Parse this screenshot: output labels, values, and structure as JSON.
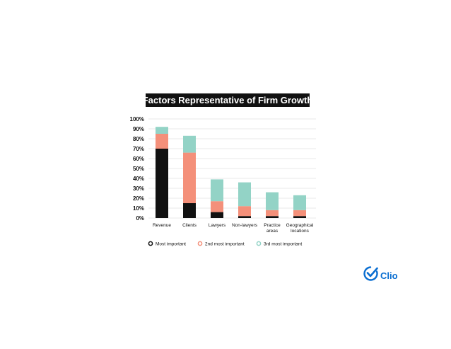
{
  "chart_data": {
    "type": "bar",
    "stacked": true,
    "title": "Factors Representative of Firm Growth",
    "categories": [
      [
        "Revenue"
      ],
      [
        "Clients"
      ],
      [
        "Lawyers"
      ],
      [
        "Non-lawyers"
      ],
      [
        "Practice",
        "areas"
      ],
      [
        "Geographical",
        "locations"
      ]
    ],
    "series": [
      {
        "name": "Most important",
        "color": "#111111",
        "values": [
          70,
          15,
          6,
          2,
          2,
          2
        ]
      },
      {
        "name": "2nd most important",
        "color": "#f4907a",
        "values": [
          15,
          51,
          11,
          10,
          6,
          6
        ]
      },
      {
        "name": "3rd most important",
        "color": "#93d3c6",
        "values": [
          7,
          17,
          22,
          24,
          18,
          15
        ]
      }
    ],
    "yticks": [
      "0%",
      "10%",
      "20%",
      "30%",
      "40%",
      "50%",
      "60%",
      "70%",
      "80%",
      "90%",
      "100%"
    ],
    "ylim": [
      0,
      100
    ],
    "grid": true,
    "legend_position": "bottom"
  },
  "brand": {
    "name": "Clio",
    "color": "#0a6ed1",
    "icon": "check-circle-icon"
  }
}
